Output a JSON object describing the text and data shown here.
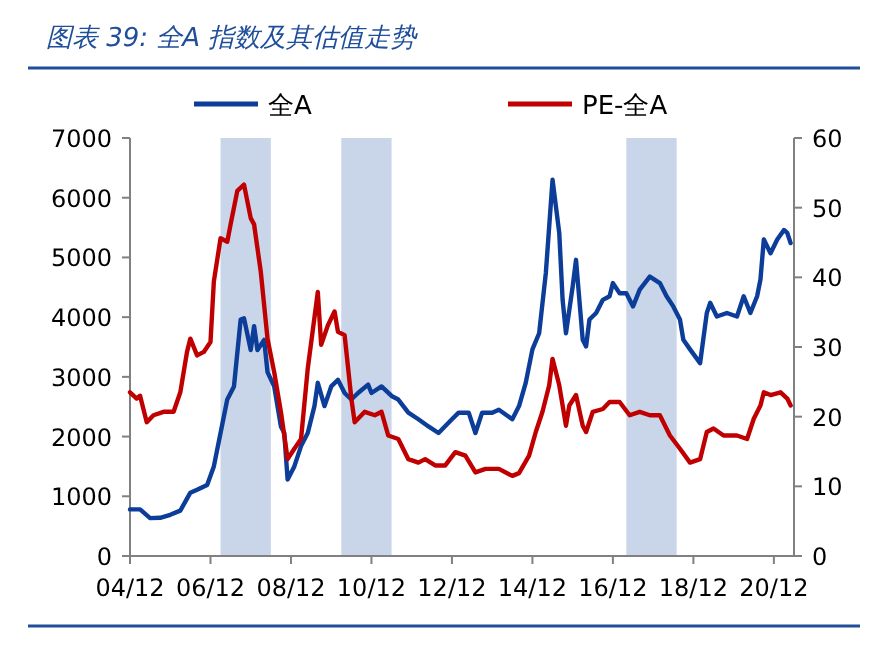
{
  "chart_data": {
    "type": "line",
    "title": "图表 39:  全A 指数及其估值走势",
    "legend": "top",
    "grid": false,
    "xlim": [
      "2004-12",
      "2021-06"
    ],
    "xticks": [
      {
        "value": "2004-12",
        "label": "04/12"
      },
      {
        "value": "2006-12",
        "label": "06/12"
      },
      {
        "value": "2008-12",
        "label": "08/12"
      },
      {
        "value": "2010-12",
        "label": "10/12"
      },
      {
        "value": "2012-12",
        "label": "12/12"
      },
      {
        "value": "2014-12",
        "label": "14/12"
      },
      {
        "value": "2016-12",
        "label": "16/12"
      },
      {
        "value": "2018-12",
        "label": "18/12"
      },
      {
        "value": "2020-12",
        "label": "20/12"
      }
    ],
    "ylim": [
      0,
      7000
    ],
    "yticks": [
      0,
      1000,
      2000,
      3000,
      4000,
      5000,
      6000,
      7000
    ],
    "y2lim": [
      0,
      60
    ],
    "y2ticks": [
      0,
      10,
      20,
      30,
      40,
      50,
      60
    ],
    "bands": [
      {
        "axis": "x",
        "from": "2007-03",
        "to": "2008-06",
        "color": "#c9d5e8"
      },
      {
        "axis": "x",
        "from": "2010-03",
        "to": "2011-06",
        "color": "#c9d5e8"
      },
      {
        "axis": "x",
        "from": "2017-04",
        "to": "2018-07",
        "color": "#c9d5e8"
      }
    ],
    "series": [
      {
        "name": "全A",
        "color": "#0b3d99",
        "x": [
          "2004-12",
          "2005-03",
          "2005-06",
          "2005-09",
          "2005-12",
          "2006-03",
          "2006-06",
          "2006-08",
          "2006-11",
          "2007-01",
          "2007-03",
          "2007-05",
          "2007-07",
          "2007-09",
          "2007-10",
          "2007-12",
          "2008-01",
          "2008-02",
          "2008-04",
          "2008-05",
          "2008-07",
          "2008-09",
          "2008-10",
          "2008-11",
          "2009-01",
          "2009-03",
          "2009-05",
          "2009-07",
          "2009-08",
          "2009-10",
          "2009-12",
          "2010-02",
          "2010-04",
          "2010-06",
          "2010-08",
          "2010-11",
          "2010-12",
          "2011-03",
          "2011-06",
          "2011-08",
          "2011-11",
          "2012-02",
          "2012-05",
          "2012-08",
          "2012-12",
          "2013-02",
          "2013-05",
          "2013-07",
          "2013-09",
          "2013-12",
          "2014-02",
          "2014-06",
          "2014-08",
          "2014-10",
          "2014-12",
          "2015-02",
          "2015-04",
          "2015-06",
          "2015-08",
          "2015-09",
          "2015-10",
          "2015-12",
          "2016-01",
          "2016-03",
          "2016-04",
          "2016-05",
          "2016-07",
          "2016-09",
          "2016-11",
          "2016-12",
          "2017-02",
          "2017-04",
          "2017-06",
          "2017-08",
          "2017-11",
          "2018-02",
          "2018-04",
          "2018-06",
          "2018-08",
          "2018-09",
          "2018-11",
          "2019-02",
          "2019-04",
          "2019-05",
          "2019-07",
          "2019-10",
          "2020-01",
          "2020-03",
          "2020-05",
          "2020-07",
          "2020-08",
          "2020-09",
          "2020-11",
          "2021-01",
          "2021-03",
          "2021-04",
          "2021-05"
        ],
        "values": [
          780,
          780,
          635,
          640,
          690,
          760,
          1060,
          1110,
          1190,
          1500,
          2060,
          2620,
          2840,
          3960,
          3980,
          3450,
          3850,
          3450,
          3620,
          3080,
          2840,
          2170,
          2060,
          1280,
          1500,
          1840,
          2060,
          2510,
          2900,
          2510,
          2840,
          2950,
          2730,
          2620,
          2730,
          2870,
          2730,
          2840,
          2680,
          2620,
          2400,
          2290,
          2170,
          2060,
          2290,
          2400,
          2400,
          2060,
          2400,
          2400,
          2450,
          2290,
          2510,
          2900,
          3460,
          3730,
          4740,
          6300,
          5410,
          4290,
          3730,
          4510,
          4960,
          3620,
          3510,
          3960,
          4070,
          4290,
          4350,
          4570,
          4400,
          4400,
          4180,
          4460,
          4680,
          4570,
          4350,
          4180,
          3960,
          3620,
          3460,
          3230,
          4070,
          4240,
          4010,
          4070,
          4010,
          4350,
          4070,
          4350,
          4630,
          5300,
          5070,
          5300,
          5460,
          5410,
          5240
        ]
      },
      {
        "name": "PE-全A",
        "color": "#c00000",
        "axis": "y2",
        "x": [
          "2004-12",
          "2005-02",
          "2005-03",
          "2005-05",
          "2005-07",
          "2005-10",
          "2006-01",
          "2006-03",
          "2006-05",
          "2006-06",
          "2006-08",
          "2006-10",
          "2006-12",
          "2007-01",
          "2007-03",
          "2007-05",
          "2007-06",
          "2007-08",
          "2007-10",
          "2007-12",
          "2008-01",
          "2008-03",
          "2008-05",
          "2008-07",
          "2008-09",
          "2008-11",
          "2009-01",
          "2009-03",
          "2009-05",
          "2009-08",
          "2009-09",
          "2009-11",
          "2010-01",
          "2010-02",
          "2010-04",
          "2010-06",
          "2010-07",
          "2010-10",
          "2011-01",
          "2011-03",
          "2011-05",
          "2011-08",
          "2011-11",
          "2012-02",
          "2012-04",
          "2012-07",
          "2012-10",
          "2013-01",
          "2013-04",
          "2013-07",
          "2013-10",
          "2014-02",
          "2014-06",
          "2014-08",
          "2014-11",
          "2015-01",
          "2015-03",
          "2015-05",
          "2015-06",
          "2015-08",
          "2015-10",
          "2015-11",
          "2016-01",
          "2016-03",
          "2016-04",
          "2016-06",
          "2016-09",
          "2016-11",
          "2017-02",
          "2017-05",
          "2017-08",
          "2017-11",
          "2018-02",
          "2018-05",
          "2018-08",
          "2018-11",
          "2019-02",
          "2019-04",
          "2019-06",
          "2019-09",
          "2020-01",
          "2020-04",
          "2020-06",
          "2020-08",
          "2020-09",
          "2020-11",
          "2021-02",
          "2021-04",
          "2021-05"
        ],
        "values": [
          23.5,
          22.6,
          23.0,
          19.2,
          20.2,
          20.7,
          20.7,
          23.5,
          29.3,
          31.2,
          28.8,
          29.3,
          30.7,
          39.4,
          45.6,
          45.1,
          47.6,
          52.4,
          53.3,
          48.5,
          47.6,
          40.8,
          31.2,
          26.4,
          20.7,
          13.9,
          15.4,
          16.8,
          26.9,
          37.9,
          30.3,
          33.1,
          35.1,
          32.2,
          31.7,
          22.6,
          19.2,
          20.7,
          20.2,
          20.7,
          17.3,
          16.8,
          13.9,
          13.4,
          13.9,
          13.0,
          13.0,
          14.9,
          14.4,
          12.0,
          12.5,
          12.5,
          11.5,
          11.9,
          14.4,
          17.8,
          20.7,
          24.5,
          28.3,
          24.5,
          18.7,
          21.6,
          23.1,
          18.7,
          17.8,
          20.7,
          21.1,
          22.1,
          22.1,
          20.2,
          20.7,
          20.2,
          20.2,
          17.3,
          15.4,
          13.4,
          13.9,
          17.8,
          18.3,
          17.3,
          17.3,
          16.8,
          19.7,
          21.6,
          23.5,
          23.1,
          23.5,
          22.6,
          21.6
        ]
      }
    ]
  }
}
